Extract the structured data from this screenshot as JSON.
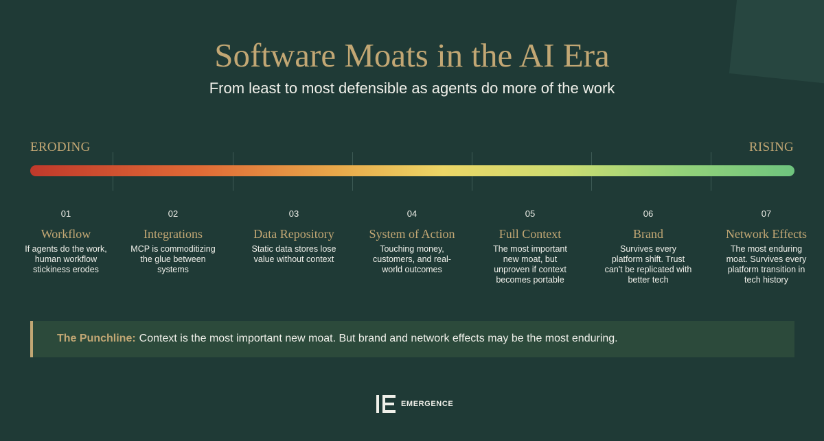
{
  "header": {
    "title": "Software Moats in the AI Era",
    "subtitle": "From least to most defensible as agents do more of the work"
  },
  "spectrum": {
    "left_label": "ERODING",
    "right_label": "RISING",
    "gradient_colors": [
      "#c0392b",
      "#e06a36",
      "#e8a84a",
      "#ecd666",
      "#cbdc72",
      "#94d27a",
      "#6ec47e"
    ]
  },
  "stages": [
    {
      "number": "01",
      "name": "Workflow",
      "description": "If agents do the work, human workflow stickiness erodes"
    },
    {
      "number": "02",
      "name": "Integrations",
      "description": "MCP is commoditizing the glue between systems"
    },
    {
      "number": "03",
      "name": "Data Repository",
      "description": "Static data stores lose value without context"
    },
    {
      "number": "04",
      "name": "System of Action",
      "description": "Touching money, customers, and real-world outcomes"
    },
    {
      "number": "05",
      "name": "Full Context",
      "description": "The most important new moat, but unproven if context becomes portable"
    },
    {
      "number": "06",
      "name": "Brand",
      "description": "Survives every platform shift. Trust can't be replicated with better tech"
    },
    {
      "number": "07",
      "name": "Network Effects",
      "description": "The most enduring moat. Survives every platform transition in tech history"
    }
  ],
  "punchline": {
    "lead": "The Punchline:",
    "text": "Context is the most important new moat. But brand and network effects may be the most enduring."
  },
  "logo": {
    "icon": "emergence-logo-icon",
    "wordmark": "EMERGENCE"
  },
  "colors": {
    "background": "#1f3a36",
    "gold": "#c2a774",
    "text": "#f0f0ea",
    "punchline_bg": "#2c4a3b"
  }
}
